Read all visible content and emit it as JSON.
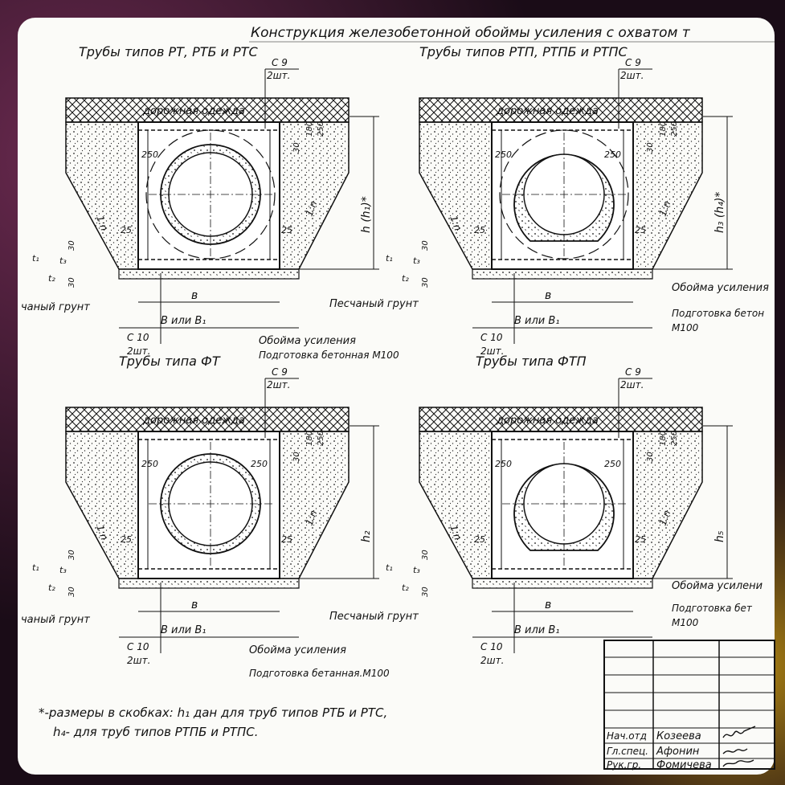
{
  "page_title": "Конструкция железобетонной обоймы усиления с охватом т",
  "road": "дорожная одежда",
  "slope": "1:n",
  "label_sand": "Песчаный грунт",
  "label_sand_cut": "чаный грунт",
  "label_cage": "Обойма усиления",
  "label_prep": "Подготовка бетонная М100",
  "label_prep_cut": "Подготовка бетон",
  "label_prep_cut2": "Подготовка бет",
  "label_prep_dot": "Подготовка бетанная.М100",
  "label_m100": "М100",
  "label_cage_cut": "Обойма усиления",
  "label_cage_cut2": "Обойма усилени",
  "panels": [
    {
      "title": "Трубы типов РТ, РТБ и РТС",
      "h": "h (h₁)*"
    },
    {
      "title": "Трубы типов РТП, РТПБ и РТПС",
      "h": "h₃ (h₄)*"
    },
    {
      "title": "Трубы типа ФТ",
      "h": "h₂"
    },
    {
      "title": "Трубы типа ФТП",
      "h": "h₅"
    }
  ],
  "dims": {
    "c9": "С 9",
    "c10": "С 10",
    "qty": "2шт.",
    "w": "в",
    "W": "В или В₁",
    "W2": "В или В₁",
    "d250": "250",
    "d25": "25",
    "d30": "30",
    "d180": "180",
    "d50": "50",
    "t1": "t₁",
    "t2": "t₂",
    "t3": "t₃"
  },
  "footnote": {
    "line1": "*-размеры в скобках: h₁ дан  для труб типов  РТБ и РТС,",
    "line2": "h₄- для труб типов  РТПБ и РТПС."
  },
  "stamp": [
    {
      "role": "Нач.отд",
      "name": "Козеева"
    },
    {
      "role": "Гл.спец.",
      "name": "Афонин"
    },
    {
      "role": "Рук.гр.",
      "name": "Фомичева"
    }
  ]
}
